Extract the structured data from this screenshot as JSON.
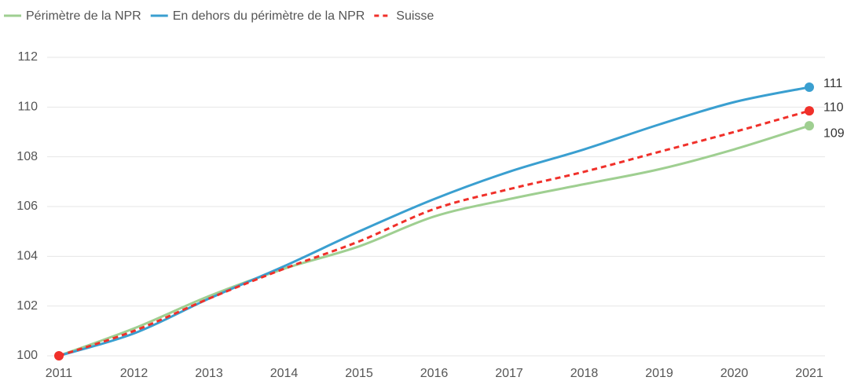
{
  "chart_data": {
    "type": "line",
    "categories": [
      "2011",
      "2012",
      "2013",
      "2014",
      "2015",
      "2016",
      "2017",
      "2018",
      "2019",
      "2020",
      "2021"
    ],
    "series": [
      {
        "name": "Périmètre de la NPR",
        "color": "#9fcf91",
        "dash": false,
        "values": [
          100,
          101.1,
          102.4,
          103.5,
          104.4,
          105.6,
          106.3,
          106.9,
          107.5,
          108.3,
          109.25
        ],
        "value_labels": [
          null,
          null,
          null,
          null,
          null,
          null,
          null,
          null,
          null,
          null,
          "109"
        ]
      },
      {
        "name": "En dehors du périmètre de la NPR",
        "color": "#3a9fd0",
        "dash": false,
        "values": [
          100,
          100.9,
          102.3,
          103.6,
          105.0,
          106.3,
          107.4,
          108.3,
          109.3,
          110.2,
          110.8
        ],
        "value_labels": [
          null,
          null,
          null,
          null,
          null,
          null,
          null,
          null,
          null,
          null,
          "111"
        ]
      },
      {
        "name": "Suisse",
        "color": "#f0302a",
        "dash": true,
        "values": [
          100,
          101.0,
          102.3,
          103.5,
          104.6,
          105.9,
          106.7,
          107.4,
          108.2,
          109.0,
          109.85
        ],
        "value_labels": [
          null,
          null,
          null,
          null,
          null,
          null,
          null,
          null,
          null,
          null,
          "110"
        ]
      }
    ],
    "ylim": [
      100,
      112
    ],
    "yticks": [
      100,
      102,
      104,
      106,
      108,
      110,
      112
    ],
    "grid": true,
    "legend": "top-left"
  }
}
